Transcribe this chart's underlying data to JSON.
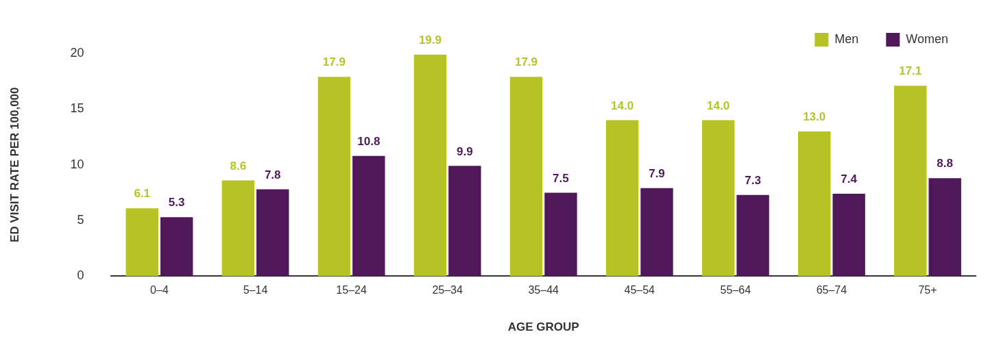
{
  "chart_data": {
    "type": "bar",
    "xlabel": "AGE GROUP",
    "ylabel": "ED VISIT RATE PER 100,000",
    "categories": [
      "0–4",
      "5–14",
      "15–24",
      "25–34",
      "35–44",
      "45–54",
      "55–64",
      "65–74",
      "75+"
    ],
    "series": [
      {
        "name": "Men",
        "color": "#b5c424",
        "values": [
          6.1,
          8.6,
          17.9,
          19.9,
          17.9,
          14.0,
          14.0,
          13.0,
          17.1
        ],
        "value_labels": [
          "6.1",
          "8.6",
          "17.9",
          "19.9",
          "17.9",
          "14.0",
          "14.0",
          "13.0",
          "17.1"
        ]
      },
      {
        "name": "Women",
        "color": "#4f1858",
        "values": [
          5.3,
          7.8,
          10.8,
          9.9,
          7.5,
          7.9,
          7.3,
          7.4,
          8.8
        ],
        "value_labels": [
          "5.3",
          "7.8",
          "10.8",
          "9.9",
          "7.5",
          "7.9",
          "7.3",
          "7.4",
          "8.8"
        ]
      }
    ],
    "ylim": [
      0,
      20
    ],
    "yticks": [
      0,
      5,
      10,
      15,
      20
    ],
    "grid": false,
    "legend": "top right"
  }
}
